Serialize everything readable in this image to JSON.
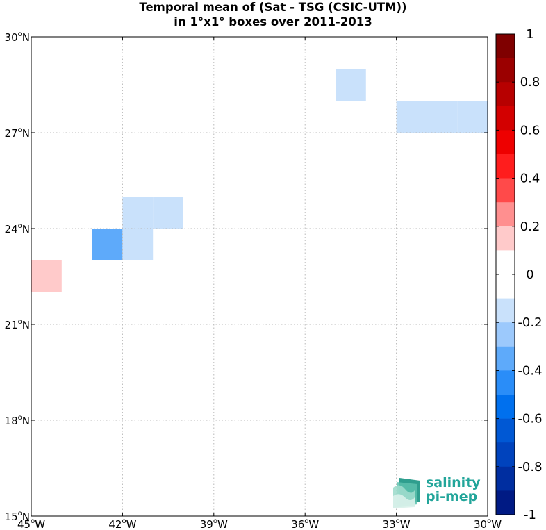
{
  "title": {
    "line1": "Temporal mean of (Sat - TSG (CSIC-UTM))",
    "line2": "in 1°x1° boxes over 2011-2013"
  },
  "logo": {
    "word1": "salinity",
    "word2": "pi-mep",
    "color": "#22a59a"
  },
  "chart_data": {
    "type": "heatmap",
    "xlim": [
      -45,
      -30
    ],
    "ylim": [
      15,
      30
    ],
    "x_ticks": [
      {
        "value": -45,
        "label": "45",
        "hemi": "W"
      },
      {
        "value": -42,
        "label": "42",
        "hemi": "W"
      },
      {
        "value": -39,
        "label": "39",
        "hemi": "W"
      },
      {
        "value": -36,
        "label": "36",
        "hemi": "W"
      },
      {
        "value": -33,
        "label": "33",
        "hemi": "W"
      },
      {
        "value": -30,
        "label": "30",
        "hemi": "W"
      }
    ],
    "y_ticks": [
      {
        "value": 30,
        "label": "30",
        "hemi": "N"
      },
      {
        "value": 27,
        "label": "27",
        "hemi": "N"
      },
      {
        "value": 24,
        "label": "24",
        "hemi": "N"
      },
      {
        "value": 21,
        "label": "21",
        "hemi": "N"
      },
      {
        "value": 18,
        "label": "18",
        "hemi": "N"
      },
      {
        "value": 15,
        "label": "15",
        "hemi": "N"
      }
    ],
    "grid": true,
    "cells": [
      {
        "lon": -35,
        "lat": 28,
        "value": -0.15
      },
      {
        "lon": -33,
        "lat": 27,
        "value": -0.15
      },
      {
        "lon": -32,
        "lat": 27,
        "value": -0.15
      },
      {
        "lon": -31,
        "lat": 27,
        "value": -0.15
      },
      {
        "lon": -42,
        "lat": 24,
        "value": -0.15
      },
      {
        "lon": -41,
        "lat": 24,
        "value": -0.15
      },
      {
        "lon": -43,
        "lat": 23,
        "value": -0.35
      },
      {
        "lon": -42,
        "lat": 23,
        "value": -0.15
      },
      {
        "lon": -45,
        "lat": 22,
        "value": 0.15
      }
    ],
    "colorbar": {
      "vmin": -1,
      "vmax": 1,
      "labels": [
        "1",
        "0.8",
        "0.6",
        "0.4",
        "0.2",
        "0",
        "-0.2",
        "-0.4",
        "-0.6",
        "-0.8",
        "-1"
      ],
      "label_values": [
        1,
        0.8,
        0.6,
        0.4,
        0.2,
        0,
        -0.2,
        -0.4,
        -0.6,
        -0.8,
        -1
      ],
      "colors_top_to_bottom": [
        "#7f0000",
        "#9b0000",
        "#b70000",
        "#d30000",
        "#ee0000",
        "#ff1d1d",
        "#ff4a4a",
        "#ff8f8f",
        "#ffcaca",
        "#ffffff",
        "#ffffff",
        "#c9e1fb",
        "#9cc9fc",
        "#5eaafa",
        "#2a8df8",
        "#0070ee",
        "#0058d4",
        "#0043bd",
        "#002ea0",
        "#001a84"
      ]
    }
  }
}
